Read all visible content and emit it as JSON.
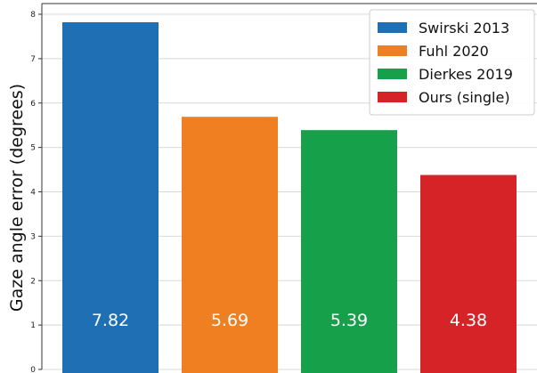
{
  "chart_data": {
    "type": "bar",
    "categories": [
      "Swirski 2013",
      "Fuhl 2020",
      "Dierkes 2019",
      "Ours (single)"
    ],
    "values": [
      7.82,
      5.69,
      5.39,
      4.38
    ],
    "data_labels": [
      "7.82",
      "5.69",
      "5.39",
      "4.38"
    ],
    "colors": [
      "#1f6fb5",
      "#f07f22",
      "#16a04a",
      "#d62327"
    ],
    "title": "",
    "xlabel": "",
    "ylabel": "Gaze angle error (degrees)",
    "ylim": [
      0,
      8
    ],
    "yticks": [
      "0",
      "1",
      "2",
      "3",
      "4",
      "5",
      "6",
      "7",
      "8"
    ],
    "legend": {
      "placement": "top-right",
      "entries": [
        "Swirski 2013",
        "Fuhl 2020",
        "Dierkes 2019",
        "Ours (single)"
      ]
    },
    "grid": true
  }
}
